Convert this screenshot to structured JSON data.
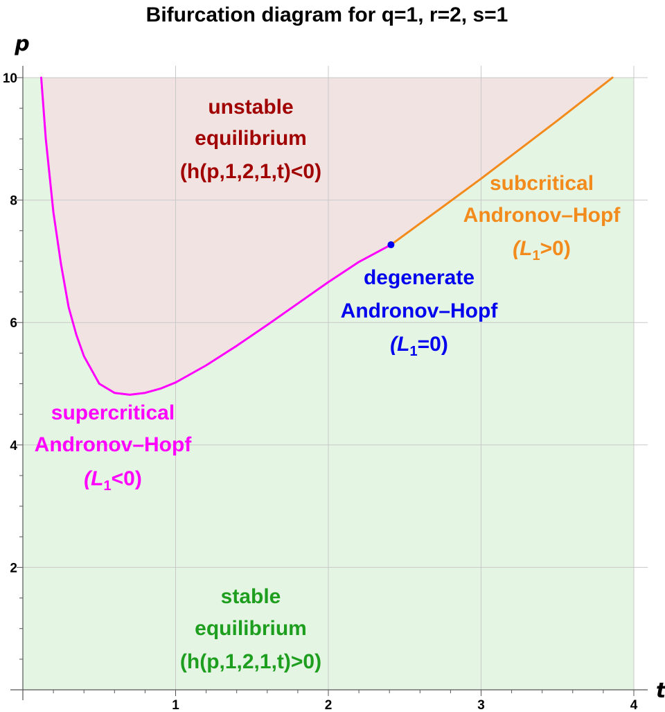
{
  "chart_data": {
    "type": "line",
    "title": "Bifurcation diagram for q=1, r=2, s=1",
    "xlabel": "t",
    "ylabel": "p",
    "xlim": [
      0,
      4
    ],
    "ylim": [
      0,
      10
    ],
    "xticks": [
      "1",
      "2",
      "3",
      "4"
    ],
    "yticks": [
      "2",
      "4",
      "6",
      "8",
      "10"
    ],
    "grid": true,
    "regions": [
      {
        "name": "unstable equilibrium",
        "lines": [
          "unstable",
          "equilibrium",
          "(h(p,1,2,1,t)<0)"
        ],
        "color": "#a10000",
        "fill": "#f2e3e3"
      },
      {
        "name": "stable equilibrium",
        "lines": [
          "stable",
          "equilibrium",
          "(h(p,1,2,1,t)>0)"
        ],
        "color": "#1e9e1e",
        "fill": "#e5f5e3"
      }
    ],
    "series": [
      {
        "name": "supercritical Andronov–Hopf",
        "color": "#ff00ff",
        "x": [
          0.12,
          0.15,
          0.2,
          0.25,
          0.3,
          0.35,
          0.4,
          0.5,
          0.6,
          0.7,
          0.8,
          0.9,
          1.0,
          1.2,
          1.4,
          1.6,
          1.8,
          2.0,
          2.2,
          2.41
        ],
        "y": [
          10.0,
          9.0,
          7.8,
          6.95,
          6.25,
          5.8,
          5.45,
          5.0,
          4.85,
          4.82,
          4.85,
          4.92,
          5.02,
          5.3,
          5.62,
          5.96,
          6.31,
          6.66,
          6.99,
          7.27
        ]
      },
      {
        "name": "subcritical Andronov–Hopf",
        "color": "#f28a1c",
        "x": [
          2.41,
          3.0,
          3.5,
          3.86
        ],
        "y": [
          7.27,
          8.35,
          9.3,
          10.0
        ]
      }
    ],
    "points": [
      {
        "name": "degenerate Andronov–Hopf",
        "x": 2.41,
        "y": 7.27,
        "color": "#0000ee"
      }
    ],
    "annotations": {
      "supercritical": {
        "lines": [
          "supercritical",
          "Andronov–Hopf",
          "(L",
          "1",
          "<0)"
        ],
        "color": "#ff00ff"
      },
      "degenerate": {
        "lines": [
          "degenerate",
          "Andronov–Hopf",
          "(L",
          "1",
          "=0)"
        ],
        "color": "#0000ee"
      },
      "subcritical": {
        "lines": [
          "subcritical",
          "Andronov–Hopf",
          "(L",
          "1",
          ">0)"
        ],
        "color": "#f28a1c"
      }
    }
  }
}
